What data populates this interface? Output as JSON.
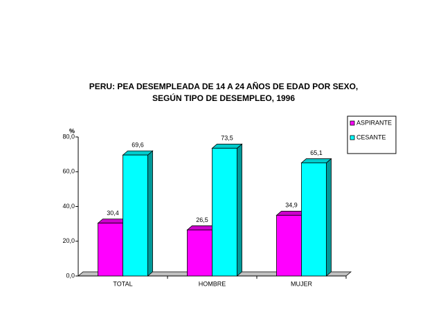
{
  "chart_data": {
    "type": "bar3d",
    "title": [
      "PERU: PEA DESEMPLEADA DE 14 A 24 AÑOS DE EDAD POR SEXO,",
      "SEGÚN TIPO DE DESEMPLEO, 1996"
    ],
    "y_label": "%",
    "categories": [
      "TOTAL",
      "HOMBRE",
      "MUJER"
    ],
    "series": [
      {
        "name": "ASPIRANTE",
        "color": "#ff00ff",
        "values": [
          30.4,
          26.5,
          34.9
        ],
        "value_labels": [
          "30,4",
          "26,5",
          "34,9"
        ]
      },
      {
        "name": "CESANTE",
        "color": "#00ffff",
        "values": [
          69.6,
          73.5,
          65.1
        ],
        "value_labels": [
          "69,6",
          "73,5",
          "65,1"
        ]
      }
    ],
    "ylim": [
      0,
      80
    ],
    "yticks": [
      {
        "value": 0,
        "label": "0,0"
      },
      {
        "value": 20,
        "label": "20,0"
      },
      {
        "value": 40,
        "label": "40,0"
      },
      {
        "value": 60,
        "label": "60,0"
      },
      {
        "value": 80,
        "label": "80,0"
      }
    ],
    "legend": "right"
  }
}
